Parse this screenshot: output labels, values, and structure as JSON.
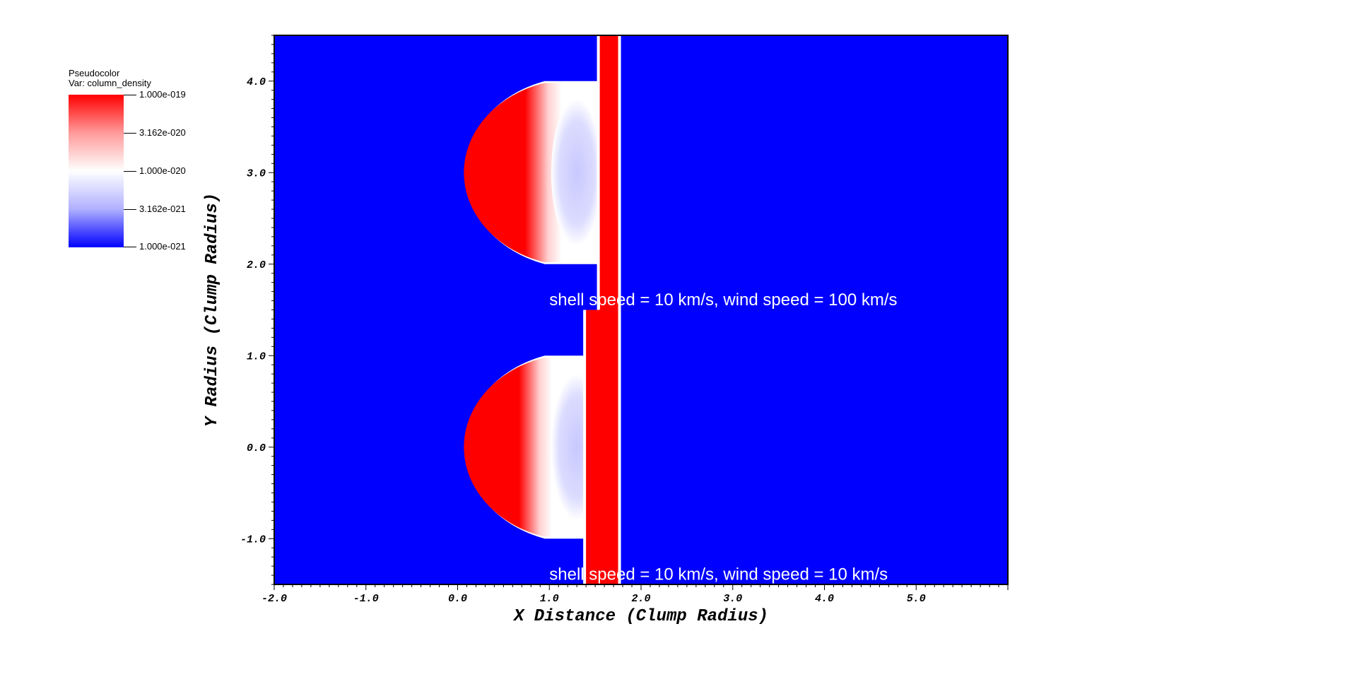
{
  "legend": {
    "title": "Pseudocolor",
    "variable": "Var: column_density",
    "labels": [
      "1.000e-019",
      "3.162e-020",
      "1.000e-020",
      "3.162e-021",
      "1.000e-021"
    ],
    "colors": [
      "#ff0000",
      "#ff9a9a",
      "#ffffff",
      "#b0b0ff",
      "#0000ff"
    ]
  },
  "chart_data": {
    "type": "heatmap",
    "xlabel": "X Distance (Clump Radius)",
    "ylabel": "Y Radius (Clump Radius)",
    "xlim": [
      -2.0,
      6.0
    ],
    "ylim": [
      -1.5,
      4.5
    ],
    "x_ticks": [
      "-2.0",
      "-1.0",
      "0.0",
      "1.0",
      "2.0",
      "3.0",
      "4.0",
      "5.0"
    ],
    "y_ticks": [
      "-1.0",
      "0.0",
      "1.0",
      "2.0",
      "3.0",
      "4.0"
    ],
    "background_color": "#0000ff",
    "high_color": "#ff0000",
    "annotations": [
      {
        "text": "shell speed = 10 km/s, wind speed = 100 km/s",
        "x": 1.0,
        "y": 1.55
      },
      {
        "text": "shell speed = 10 km/s, wind speed = 10 km/s",
        "x": 1.0,
        "y": -1.45
      }
    ],
    "panels": [
      {
        "clump_center": [
          1.0,
          3.0
        ],
        "shell_x": [
          1.55,
          1.75
        ],
        "y_range": [
          1.5,
          4.5
        ]
      },
      {
        "clump_center": [
          1.0,
          0.0
        ],
        "shell_x": [
          1.4,
          1.75
        ],
        "y_range": [
          -1.5,
          1.5
        ]
      }
    ]
  }
}
